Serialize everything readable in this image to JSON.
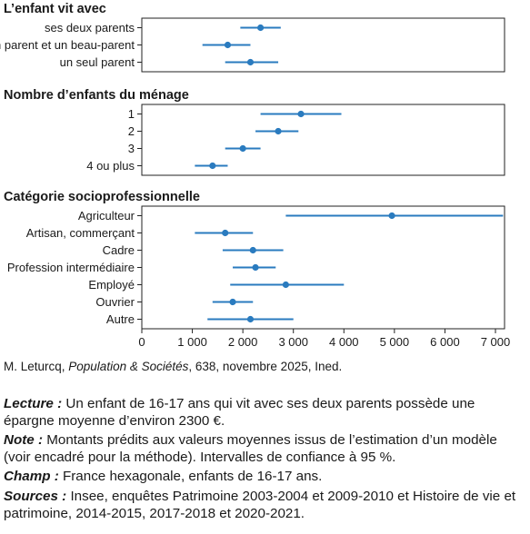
{
  "chart_data": {
    "type": "forest",
    "xlim": [
      0,
      7000
    ],
    "ticks": [
      "0",
      "1 000",
      "2 000",
      "3 000",
      "4 000",
      "5 000",
      "6 000",
      "7 000"
    ],
    "tick_values": [
      0,
      1000,
      2000,
      3000,
      4000,
      5000,
      6000,
      7000
    ],
    "color": "#2a7bbf",
    "sections": [
      {
        "title": "L’enfant vit avec",
        "rows": [
          {
            "label": "ses deux parents",
            "mean": 2350,
            "low": 1950,
            "high": 2750
          },
          {
            "label": "un parent et un beau-parent",
            "mean": 1700,
            "low": 1200,
            "high": 2150
          },
          {
            "label": "un seul parent",
            "mean": 2150,
            "low": 1650,
            "high": 2700
          }
        ]
      },
      {
        "title": "Nombre d’enfants du ménage",
        "rows": [
          {
            "label": "1",
            "mean": 3150,
            "low": 2350,
            "high": 3950
          },
          {
            "label": "2",
            "mean": 2700,
            "low": 2250,
            "high": 3100
          },
          {
            "label": "3",
            "mean": 2000,
            "low": 1650,
            "high": 2350
          },
          {
            "label": "4 ou plus",
            "mean": 1400,
            "low": 1050,
            "high": 1700
          }
        ]
      },
      {
        "title": "Catégorie socioprofessionnelle",
        "rows": [
          {
            "label": "Agriculteur",
            "mean": 4950,
            "low": 2850,
            "high": 7150
          },
          {
            "label": "Artisan, commerçant",
            "mean": 1650,
            "low": 1050,
            "high": 2200
          },
          {
            "label": "Cadre",
            "mean": 2200,
            "low": 1600,
            "high": 2800
          },
          {
            "label": "Profession intermédiaire",
            "mean": 2250,
            "low": 1800,
            "high": 2650
          },
          {
            "label": "Employé",
            "mean": 2850,
            "low": 1750,
            "high": 4000
          },
          {
            "label": "Ouvrier",
            "mean": 1800,
            "low": 1400,
            "high": 2200
          },
          {
            "label": "Autre",
            "mean": 2150,
            "low": 1300,
            "high": 3000
          }
        ]
      }
    ]
  },
  "source": {
    "author": "M. Leturcq, ",
    "publication": "Population & Sociétés",
    "rest": ", 638, novembre 2025, Ined."
  },
  "notes": {
    "lecture_label": "Lecture :",
    "lecture_text": " Un enfant de 16-17 ans qui vit avec ses deux parents possède une épargne moyenne d’environ 2300 €.",
    "note_label": "Note :",
    "note_text": " Montants prédits aux valeurs moyennes issus de l’estimation d’un modèle (voir encadré pour la méthode). Intervalles de confiance à 95 %.",
    "champ_label": "Champ :",
    "champ_text": " France hexagonale, enfants de 16-17 ans.",
    "sources_label": "Sources :",
    "sources_text": " Insee, enquêtes Patrimoine 2003-2004 et 2009-2010 et Histoire de vie et patrimoine, 2014-2015, 2017-2018 et 2020-2021."
  }
}
